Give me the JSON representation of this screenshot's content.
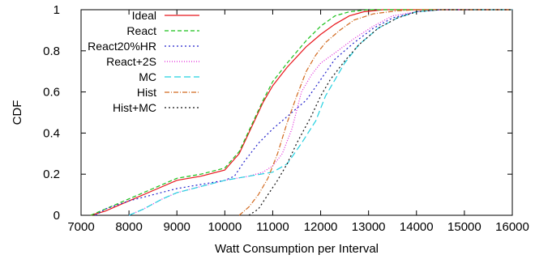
{
  "chart_data": {
    "type": "line",
    "xlabel": "Watt Consumption per Interval",
    "ylabel": "CDF",
    "xlim": [
      7000,
      16000
    ],
    "ylim": [
      0,
      1
    ],
    "x_ticks": [
      "7000",
      "8000",
      "9000",
      "10000",
      "11000",
      "12000",
      "13000",
      "14000",
      "15000",
      "16000"
    ],
    "y_ticks": [
      "0",
      "0.2",
      "0.4",
      "0.6",
      "0.8",
      "1"
    ],
    "grid": false,
    "legend_position": "top-left",
    "series": [
      {
        "name": "Ideal",
        "color": "#e8151b",
        "dash": "",
        "points": [
          [
            7200,
            0
          ],
          [
            7500,
            0.02
          ],
          [
            8000,
            0.07
          ],
          [
            8500,
            0.12
          ],
          [
            9000,
            0.17
          ],
          [
            9500,
            0.19
          ],
          [
            10000,
            0.22
          ],
          [
            10300,
            0.3
          ],
          [
            10500,
            0.4
          ],
          [
            10800,
            0.55
          ],
          [
            11000,
            0.63
          ],
          [
            11300,
            0.72
          ],
          [
            11700,
            0.82
          ],
          [
            12000,
            0.88
          ],
          [
            12300,
            0.93
          ],
          [
            12600,
            0.97
          ],
          [
            12900,
            0.99
          ],
          [
            13300,
            1.0
          ],
          [
            16000,
            1.0
          ]
        ]
      },
      {
        "name": "React",
        "color": "#19c019",
        "dash": "5,3",
        "points": [
          [
            7200,
            0
          ],
          [
            7500,
            0.03
          ],
          [
            8000,
            0.08
          ],
          [
            8500,
            0.13
          ],
          [
            9000,
            0.18
          ],
          [
            9500,
            0.2
          ],
          [
            10000,
            0.23
          ],
          [
            10300,
            0.31
          ],
          [
            10500,
            0.41
          ],
          [
            10800,
            0.56
          ],
          [
            11000,
            0.65
          ],
          [
            11300,
            0.74
          ],
          [
            11700,
            0.85
          ],
          [
            12000,
            0.92
          ],
          [
            12300,
            0.97
          ],
          [
            12600,
            0.99
          ],
          [
            13000,
            1.0
          ],
          [
            16000,
            1.0
          ]
        ]
      },
      {
        "name": "React20%HR",
        "color": "#2222cc",
        "dash": "2,3",
        "points": [
          [
            7300,
            0
          ],
          [
            7500,
            0.03
          ],
          [
            8000,
            0.07
          ],
          [
            8500,
            0.1
          ],
          [
            9000,
            0.13
          ],
          [
            9500,
            0.15
          ],
          [
            10000,
            0.17
          ],
          [
            10200,
            0.19
          ],
          [
            10400,
            0.26
          ],
          [
            10700,
            0.35
          ],
          [
            11000,
            0.42
          ],
          [
            11400,
            0.5
          ],
          [
            11700,
            0.56
          ],
          [
            12000,
            0.66
          ],
          [
            12300,
            0.76
          ],
          [
            12700,
            0.84
          ],
          [
            13100,
            0.91
          ],
          [
            13500,
            0.96
          ],
          [
            14000,
            0.99
          ],
          [
            14500,
            1.0
          ],
          [
            16000,
            1.0
          ]
        ]
      },
      {
        "name": "React+2S",
        "color": "#e020d8",
        "dash": "1,2",
        "points": [
          [
            8000,
            0
          ],
          [
            8300,
            0.03
          ],
          [
            8700,
            0.08
          ],
          [
            9000,
            0.11
          ],
          [
            9500,
            0.14
          ],
          [
            10000,
            0.17
          ],
          [
            10500,
            0.19
          ],
          [
            10800,
            0.21
          ],
          [
            11000,
            0.24
          ],
          [
            11200,
            0.3
          ],
          [
            11400,
            0.42
          ],
          [
            11600,
            0.6
          ],
          [
            11800,
            0.68
          ],
          [
            12000,
            0.74
          ],
          [
            12300,
            0.79
          ],
          [
            12700,
            0.86
          ],
          [
            13100,
            0.92
          ],
          [
            13500,
            0.97
          ],
          [
            14000,
            0.99
          ],
          [
            14500,
            1.0
          ],
          [
            16000,
            1.0
          ]
        ]
      },
      {
        "name": "MC",
        "color": "#22d0e0",
        "dash": "8,4",
        "points": [
          [
            8000,
            0
          ],
          [
            8300,
            0.03
          ],
          [
            8700,
            0.08
          ],
          [
            9000,
            0.11
          ],
          [
            9500,
            0.14
          ],
          [
            10000,
            0.17
          ],
          [
            10500,
            0.19
          ],
          [
            11000,
            0.21
          ],
          [
            11300,
            0.25
          ],
          [
            11600,
            0.35
          ],
          [
            11900,
            0.46
          ],
          [
            12100,
            0.58
          ],
          [
            12300,
            0.66
          ],
          [
            12500,
            0.74
          ],
          [
            12800,
            0.83
          ],
          [
            13200,
            0.91
          ],
          [
            13600,
            0.96
          ],
          [
            14000,
            0.99
          ],
          [
            14500,
            1.0
          ],
          [
            16000,
            1.0
          ]
        ]
      },
      {
        "name": "Hist",
        "color": "#d2691e",
        "dash": "6,2,1,2",
        "points": [
          [
            10300,
            0
          ],
          [
            10500,
            0.04
          ],
          [
            10700,
            0.1
          ],
          [
            10900,
            0.18
          ],
          [
            11100,
            0.3
          ],
          [
            11300,
            0.45
          ],
          [
            11500,
            0.58
          ],
          [
            11700,
            0.7
          ],
          [
            11900,
            0.78
          ],
          [
            12100,
            0.84
          ],
          [
            12400,
            0.9
          ],
          [
            12700,
            0.95
          ],
          [
            13100,
            0.98
          ],
          [
            13600,
            0.995
          ],
          [
            14000,
            1.0
          ],
          [
            16000,
            1.0
          ]
        ]
      },
      {
        "name": "Hist+MC",
        "color": "#111111",
        "dash": "2,3",
        "points": [
          [
            10500,
            0
          ],
          [
            10700,
            0.03
          ],
          [
            10900,
            0.1
          ],
          [
            11100,
            0.17
          ],
          [
            11300,
            0.25
          ],
          [
            11500,
            0.35
          ],
          [
            11800,
            0.48
          ],
          [
            12000,
            0.58
          ],
          [
            12200,
            0.66
          ],
          [
            12500,
            0.75
          ],
          [
            12800,
            0.83
          ],
          [
            13200,
            0.91
          ],
          [
            13600,
            0.96
          ],
          [
            14000,
            0.99
          ],
          [
            14500,
            1.0
          ],
          [
            16000,
            1.0
          ]
        ]
      }
    ]
  }
}
